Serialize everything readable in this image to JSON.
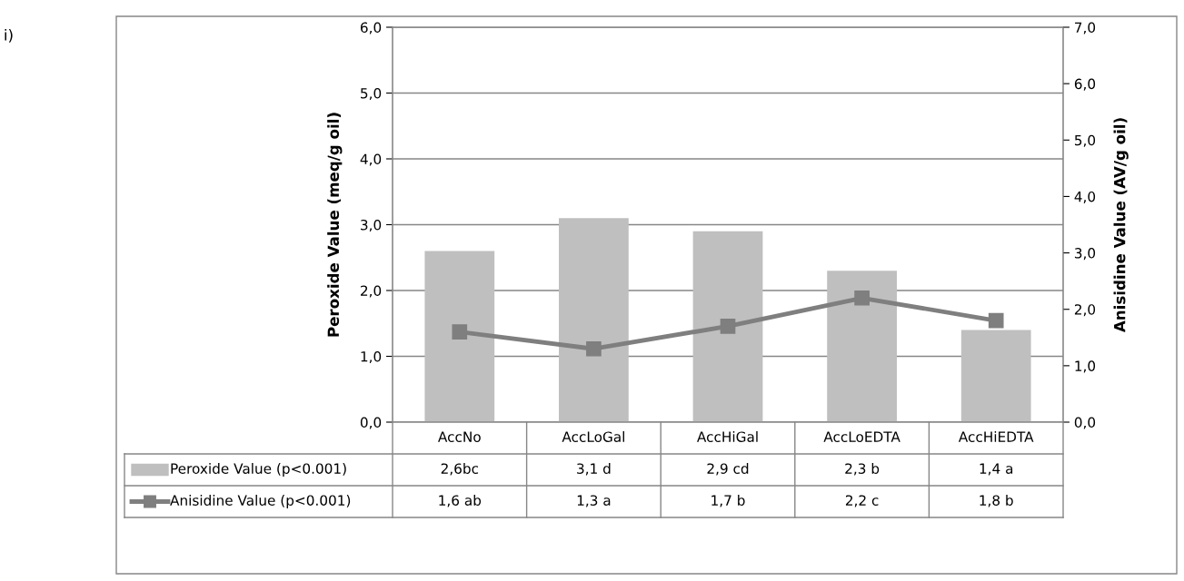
{
  "chart_data": {
    "type": "bar",
    "categories": [
      "AccNo",
      "AccLoGal",
      "AccHiGal",
      "AccLoEDTA",
      "AccHiEDTA"
    ],
    "series": [
      {
        "name": "Peroxide Value (p<0.001)",
        "color": "#bfbfbf",
        "values": [
          2.6,
          3.1,
          2.9,
          2.3,
          1.4
        ],
        "value_labels": [
          "2,6bc",
          "3,1 d",
          "2,9 cd",
          "2,3 b",
          "1,4 a"
        ]
      },
      {
        "name": "Anisidine Value (p<0.001)",
        "type": "line",
        "axis": "y2",
        "color": "#7f7f7f",
        "marker": "square",
        "values": [
          1.6,
          1.3,
          1.7,
          2.2,
          1.8
        ],
        "value_labels": [
          "1,6 ab",
          "1,3 a",
          "1,7 b",
          "2,2 c",
          "1,8 b"
        ]
      }
    ],
    "ylabel": "Peroxide Value (meq/g oil)",
    "y2label": "Anisidine Value (AV/g oil)",
    "ylim": [
      0,
      6
    ],
    "yticks": [
      {
        "value": 0,
        "label": "0,0"
      },
      {
        "value": 1,
        "label": "1,0"
      },
      {
        "value": 2,
        "label": "2,0"
      },
      {
        "value": 3,
        "label": "3,0"
      },
      {
        "value": 4,
        "label": "4,0"
      },
      {
        "value": 5,
        "label": "5,0"
      },
      {
        "value": 6,
        "label": "6,0"
      }
    ],
    "y2lim": [
      0,
      7
    ],
    "y2ticks": [
      {
        "value": 0,
        "label": "0,0"
      },
      {
        "value": 1,
        "label": "1,0"
      },
      {
        "value": 2,
        "label": "2,0"
      },
      {
        "value": 3,
        "label": "3,0"
      },
      {
        "value": 4,
        "label": "4,0"
      },
      {
        "value": 5,
        "label": "5,0"
      },
      {
        "value": 6,
        "label": "6,0"
      },
      {
        "value": 7,
        "label": "7,0"
      }
    ],
    "grid": "y",
    "legend": "bottom",
    "annotations": [
      "i)"
    ]
  }
}
